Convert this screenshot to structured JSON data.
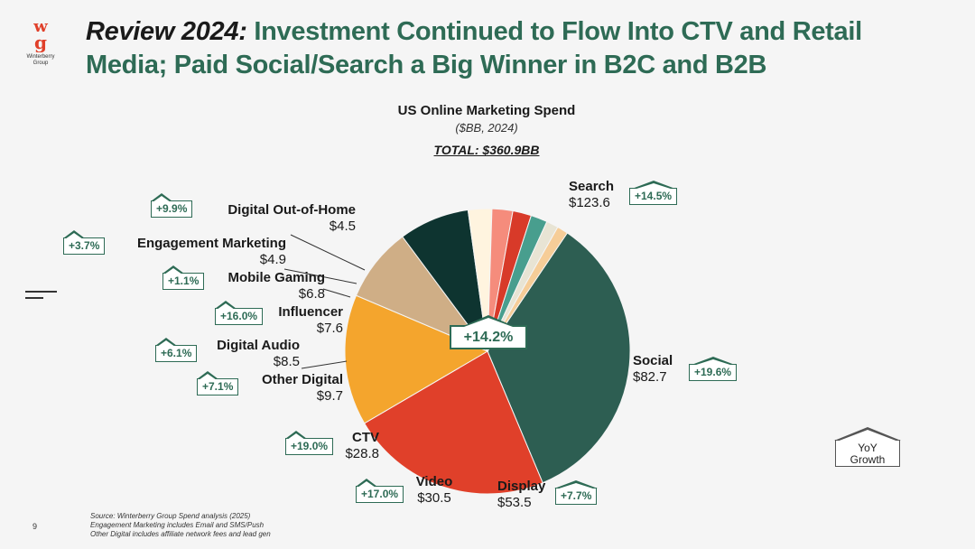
{
  "logo": {
    "mark": "wg",
    "name_line1": "Winterberry",
    "name_line2": "Group"
  },
  "header": {
    "title_prefix": "Review 2024:",
    "title_main": " Investment Continued to Flow Into CTV and Retail Media; Paid Social/Search a Big Winner in B2C and B2B"
  },
  "colors": {
    "accent": "#2e6b55",
    "title_dark": "#1a1a1a"
  },
  "chart_data": {
    "type": "pie",
    "title": "US Online Marketing Spend",
    "subtitle": "($BB, 2024)",
    "total_label": "TOTAL: $360.9BB",
    "unit": "$BB",
    "overall_growth": "+14.2%",
    "legend": {
      "line1": "YoY",
      "line2": "Growth"
    },
    "slices": [
      {
        "name": "Search",
        "value": 123.6,
        "value_label": "$123.6",
        "growth": "+14.5%",
        "color": "#2d5e52"
      },
      {
        "name": "Social",
        "value": 82.7,
        "value_label": "$82.7",
        "growth": "+19.6%",
        "color": "#e0402a"
      },
      {
        "name": "Display",
        "value": 53.5,
        "value_label": "$53.5",
        "growth": "+7.7%",
        "color": "#f4a52d"
      },
      {
        "name": "Video",
        "value": 30.5,
        "value_label": "$30.5",
        "growth": "+17.0%",
        "color": "#cfae86"
      },
      {
        "name": "CTV",
        "value": 28.8,
        "value_label": "$28.8",
        "growth": "+19.0%",
        "color": "#0e3430"
      },
      {
        "name": "Other Digital",
        "value": 9.7,
        "value_label": "$9.7",
        "growth": "+7.1%",
        "color": "#fff4df"
      },
      {
        "name": "Digital Audio",
        "value": 8.5,
        "value_label": "$8.5",
        "growth": "+6.1%",
        "color": "#f58c7c"
      },
      {
        "name": "Influencer",
        "value": 7.6,
        "value_label": "$7.6",
        "growth": "+16.0%",
        "color": "#d83a29"
      },
      {
        "name": "Mobile Gaming",
        "value": 6.8,
        "value_label": "$6.8",
        "growth": "+1.1%",
        "color": "#489e8e"
      },
      {
        "name": "Engagement Marketing",
        "value": 4.9,
        "value_label": "$4.9",
        "growth": "+3.7%",
        "color": "#e8e4d4"
      },
      {
        "name": "Digital Out-of-Home",
        "value": 4.5,
        "value_label": "$4.5",
        "growth": "+9.9%",
        "color": "#f6cd98"
      }
    ]
  },
  "footnotes": {
    "line1": "Source: Winterberry Group Spend analysis (2025)",
    "line2": "Engagement Marketing includes Email and SMS/Push",
    "line3": "Other Digital includes affiliate network fees and lead gen"
  },
  "page_number": "9"
}
